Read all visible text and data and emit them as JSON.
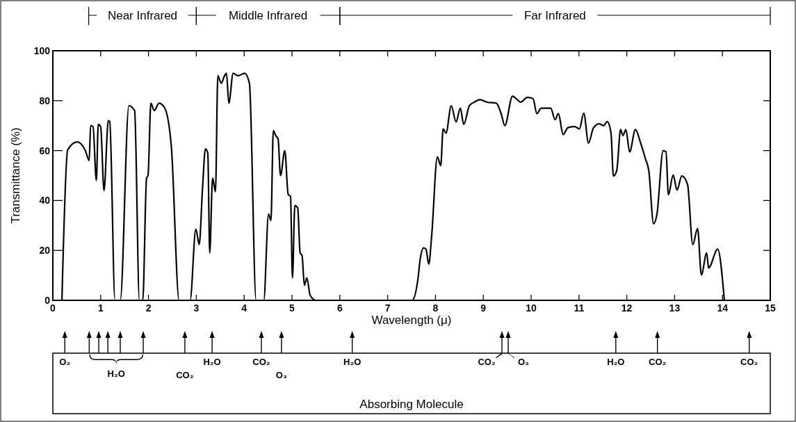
{
  "chart_data": {
    "type": "line",
    "xlabel": "Wavelength (μ)",
    "ylabel": "Transmittance (%)",
    "xlim": [
      0,
      15
    ],
    "xticks": [
      0,
      1,
      2,
      3,
      4,
      5,
      6,
      7,
      8,
      9,
      10,
      11,
      12,
      13,
      14,
      15
    ],
    "ylim": [
      0,
      100
    ],
    "yticks": [
      0,
      20,
      40,
      60,
      80,
      100
    ],
    "grid": false,
    "marker": "none",
    "line_style": "solid",
    "annotations": [
      "Near Infrared",
      "Middle Infrared",
      "Far Infrared",
      "O₂",
      "H₂O",
      "CO₂",
      "H₂O",
      "CO₂",
      "O₃",
      "H₂O",
      "CO₂",
      "O₃",
      "H₂O",
      "CO₂",
      "CO₂",
      "Absorbing Molecule"
    ],
    "series": [
      {
        "color": "#000000",
        "x": [
          0.19,
          0.31,
          0.51,
          0.68,
          0.76,
          0.79,
          0.84,
          0.91,
          0.95,
          1.0,
          1.07,
          1.16,
          1.19,
          1.3,
          1.41,
          1.59,
          1.71,
          1.81,
          1.88,
          1.96,
          1.99,
          2.05,
          2.12,
          2.22,
          2.34,
          2.48,
          2.64,
          2.87,
          2.99,
          3.06,
          3.13,
          3.19,
          3.24,
          3.28,
          3.34,
          3.4,
          3.45,
          3.52,
          3.59,
          3.63,
          3.68,
          3.77,
          3.87,
          4.01,
          4.11,
          4.25,
          4.41,
          4.51,
          4.56,
          4.61,
          4.66,
          4.71,
          4.76,
          4.85,
          4.92,
          4.97,
          5.01,
          5.06,
          5.12,
          5.17,
          5.21,
          5.26,
          5.31,
          5.38,
          5.5,
          7.51,
          7.63,
          7.68,
          7.75,
          7.8,
          7.86,
          7.92,
          8.04,
          8.11,
          8.16,
          8.22,
          8.33,
          8.43,
          8.52,
          8.59,
          8.71,
          8.81,
          8.93,
          9.08,
          9.27,
          9.37,
          9.45,
          9.61,
          9.71,
          9.78,
          9.92,
          10.04,
          10.12,
          10.21,
          10.41,
          10.5,
          10.57,
          10.67,
          10.77,
          10.91,
          11.01,
          11.1,
          11.2,
          11.3,
          11.42,
          11.52,
          11.59,
          11.67,
          11.72,
          11.79,
          11.87,
          11.92,
          11.98,
          12.06,
          12.18,
          12.29,
          12.39,
          12.46,
          12.56,
          12.63,
          12.76,
          12.82,
          12.87,
          12.97,
          13.05,
          13.15,
          13.27,
          13.38,
          13.48,
          13.56,
          13.67,
          13.71,
          13.9,
          14.04
        ],
        "values": [
          0,
          60.3,
          63.5,
          60,
          56,
          70,
          69.6,
          48,
          70.5,
          69.6,
          44,
          72,
          71.6,
          0,
          0,
          78,
          76,
          0,
          0,
          49,
          50,
          79,
          76,
          79,
          77,
          61,
          0,
          0,
          28.5,
          22.4,
          45,
          60.7,
          59,
          19,
          49,
          43.5,
          90,
          87,
          90,
          91,
          79,
          91,
          90,
          91,
          87,
          0,
          0,
          34.6,
          32,
          68,
          66,
          64.5,
          50,
          60,
          42.5,
          41.6,
          9,
          38,
          37,
          19,
          18,
          6,
          9,
          2,
          0,
          0,
          8,
          16.4,
          21,
          20.6,
          14.5,
          25.7,
          57.5,
          54,
          68.7,
          67,
          78,
          71.5,
          77,
          70.5,
          78,
          79.4,
          80.4,
          79.4,
          79,
          75,
          70,
          81.8,
          80.4,
          79.4,
          81.3,
          80.8,
          74.8,
          77,
          77,
          72.4,
          74.8,
          66.4,
          69.2,
          69.6,
          68.7,
          75,
          63,
          69,
          70.7,
          70,
          71.6,
          67,
          49.8,
          52,
          68.4,
          66,
          68.4,
          59.5,
          68.4,
          63,
          56.7,
          52,
          30.7,
          34.4,
          60,
          59.5,
          42.3,
          50.2,
          44.2,
          49.8,
          46.5,
          22.3,
          28.8,
          10.2,
          19,
          13,
          20.5,
          0
        ]
      }
    ]
  }
}
